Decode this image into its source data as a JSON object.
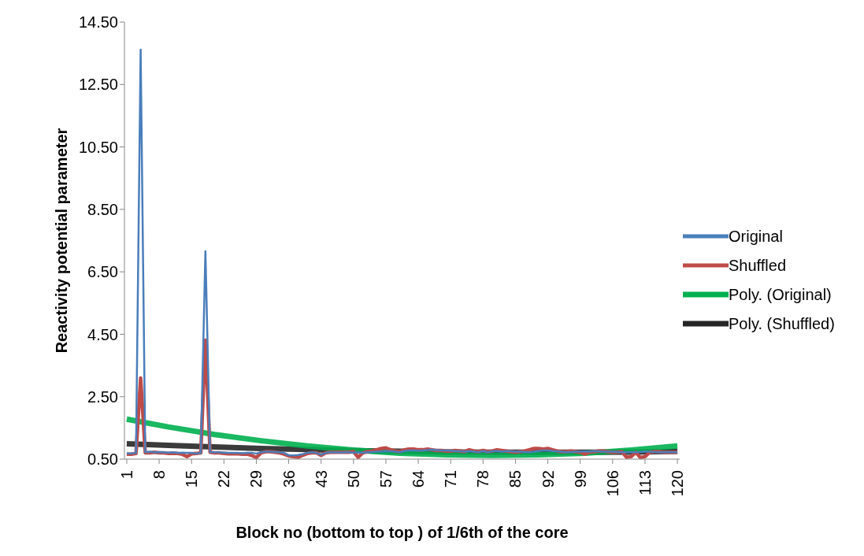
{
  "chart_data": {
    "type": "line",
    "xlabel": "Block no (bottom to top ) of 1/6th of the core",
    "ylabel": "Reactivity potential parameter",
    "x": [
      1,
      2,
      3,
      4,
      5,
      6,
      7,
      8,
      9,
      10,
      11,
      12,
      13,
      14,
      15,
      16,
      17,
      18,
      19,
      20,
      21,
      22,
      23,
      24,
      25,
      26,
      27,
      28,
      29,
      30,
      31,
      32,
      33,
      34,
      35,
      36,
      37,
      38,
      39,
      40,
      41,
      42,
      43,
      44,
      45,
      46,
      47,
      48,
      49,
      50,
      51,
      52,
      53,
      54,
      55,
      56,
      57,
      58,
      59,
      60,
      61,
      62,
      63,
      64,
      65,
      66,
      67,
      68,
      69,
      70,
      71,
      72,
      73,
      74,
      75,
      76,
      77,
      78,
      79,
      80,
      81,
      82,
      83,
      84,
      85,
      86,
      87,
      88,
      89,
      90,
      91,
      92,
      93,
      94,
      95,
      96,
      97,
      98,
      99,
      100,
      101,
      102,
      103,
      104,
      105,
      106,
      107,
      108,
      109,
      110,
      111,
      112,
      113,
      114,
      115,
      116,
      117,
      118,
      119,
      120
    ],
    "xlim": [
      0.5,
      120.5
    ],
    "xticks": [
      1,
      8,
      15,
      22,
      29,
      36,
      43,
      50,
      57,
      64,
      71,
      78,
      85,
      92,
      99,
      106,
      113,
      120
    ],
    "ylim": [
      0.5,
      14.5
    ],
    "yticks": [
      {
        "value": 0.5,
        "label": "0.50"
      },
      {
        "value": 2.5,
        "label": "2.50"
      },
      {
        "value": 4.5,
        "label": "4.50"
      },
      {
        "value": 6.5,
        "label": "6.50"
      },
      {
        "value": 8.5,
        "label": "8.50"
      },
      {
        "value": 10.5,
        "label": "10.50"
      },
      {
        "value": 12.5,
        "label": "12.50"
      },
      {
        "value": 14.5,
        "label": "14.50"
      }
    ],
    "grid": false,
    "legend": "right",
    "marker": "none",
    "line_style": "solid",
    "series": [
      {
        "name": "Original",
        "color": "#4a7ebb",
        "values": [
          0.68,
          0.68,
          0.7,
          13.62,
          0.72,
          0.74,
          0.72,
          0.73,
          0.72,
          0.71,
          0.72,
          0.7,
          0.71,
          0.7,
          0.7,
          0.68,
          0.7,
          7.16,
          0.73,
          0.72,
          0.72,
          0.71,
          0.7,
          0.7,
          0.7,
          0.69,
          0.7,
          0.7,
          0.68,
          0.72,
          0.74,
          0.74,
          0.73,
          0.72,
          0.7,
          0.62,
          0.62,
          0.63,
          0.66,
          0.7,
          0.72,
          0.7,
          0.64,
          0.7,
          0.72,
          0.72,
          0.71,
          0.72,
          0.72,
          0.7,
          0.72,
          0.7,
          0.72,
          0.73,
          0.74,
          0.74,
          0.76,
          0.75,
          0.74,
          0.72,
          0.76,
          0.78,
          0.78,
          0.77,
          0.78,
          0.79,
          0.8,
          0.79,
          0.78,
          0.78,
          0.77,
          0.76,
          0.75,
          0.74,
          0.76,
          0.74,
          0.72,
          0.76,
          0.72,
          0.75,
          0.76,
          0.74,
          0.76,
          0.75,
          0.74,
          0.74,
          0.73,
          0.72,
          0.74,
          0.76,
          0.78,
          0.78,
          0.76,
          0.75,
          0.74,
          0.72,
          0.73,
          0.74,
          0.74,
          0.75,
          0.74,
          0.76,
          0.75,
          0.74,
          0.74,
          0.74,
          0.73,
          0.72,
          0.72,
          0.72,
          0.72,
          0.73,
          0.74,
          0.74,
          0.73,
          0.72,
          0.72,
          0.73,
          0.72,
          0.72
        ]
      },
      {
        "name": "Shuffled",
        "color": "#be4b48",
        "values": [
          0.66,
          0.66,
          0.68,
          3.1,
          0.7,
          0.7,
          0.72,
          0.7,
          0.7,
          0.68,
          0.69,
          0.68,
          0.66,
          0.58,
          0.67,
          0.68,
          0.7,
          4.31,
          0.72,
          0.7,
          0.7,
          0.68,
          0.67,
          0.67,
          0.67,
          0.66,
          0.66,
          0.62,
          0.55,
          0.7,
          0.74,
          0.74,
          0.72,
          0.7,
          0.66,
          0.6,
          0.58,
          0.56,
          0.62,
          0.68,
          0.7,
          0.7,
          0.62,
          0.7,
          0.72,
          0.72,
          0.72,
          0.72,
          0.72,
          0.74,
          0.56,
          0.7,
          0.74,
          0.76,
          0.8,
          0.84,
          0.86,
          0.8,
          0.76,
          0.74,
          0.8,
          0.82,
          0.82,
          0.8,
          0.8,
          0.82,
          0.8,
          0.78,
          0.78,
          0.76,
          0.76,
          0.78,
          0.76,
          0.74,
          0.8,
          0.76,
          0.74,
          0.78,
          0.74,
          0.76,
          0.8,
          0.78,
          0.76,
          0.74,
          0.72,
          0.74,
          0.76,
          0.8,
          0.84,
          0.84,
          0.82,
          0.84,
          0.8,
          0.76,
          0.74,
          0.74,
          0.76,
          0.74,
          0.72,
          0.66,
          0.72,
          0.74,
          0.76,
          0.76,
          0.74,
          0.72,
          0.72,
          0.74,
          0.56,
          0.58,
          0.72,
          0.55,
          0.58,
          0.72,
          0.74,
          0.74,
          0.72,
          0.72,
          0.72,
          0.72
        ]
      },
      {
        "name": "Poly. (Original)",
        "color": "#00b050",
        "x": [
          1,
          10,
          20,
          30,
          40,
          50,
          60,
          70,
          80,
          90,
          100,
          110,
          120
        ],
        "values": [
          1.78,
          1.53,
          1.29,
          1.09,
          0.92,
          0.79,
          0.69,
          0.64,
          0.62,
          0.64,
          0.69,
          0.79,
          0.92
        ]
      },
      {
        "name": "Poly. (Shuffled)",
        "color": "#262626",
        "x": [
          1,
          10,
          20,
          30,
          40,
          50,
          60,
          70,
          80,
          90,
          100,
          110,
          120
        ],
        "values": [
          0.99,
          0.94,
          0.89,
          0.84,
          0.81,
          0.77,
          0.75,
          0.73,
          0.72,
          0.72,
          0.72,
          0.73,
          0.75
        ]
      }
    ]
  }
}
